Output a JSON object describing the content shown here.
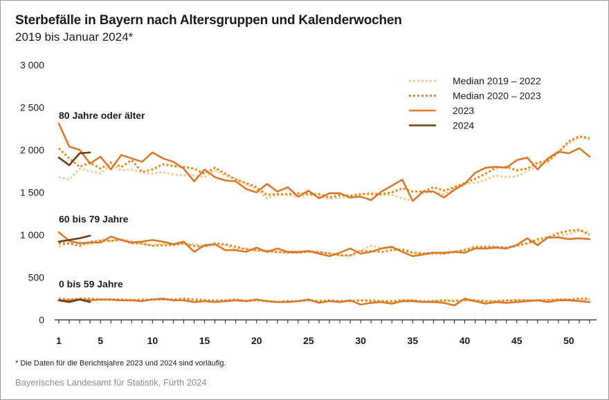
{
  "title": "Sterbefälle in Bayern nach Altersgruppen und Kalenderwochen",
  "subtitle": "2019 bis Januar 2024*",
  "footnote": "* Die Daten für die Berichtsjahre 2023 und 2024 sind vorläufig.",
  "source": "Bayerisches Landesamt für Statistik, Fürth 2024",
  "chart_data": {
    "type": "line",
    "xlim": [
      1,
      52
    ],
    "ylim": [
      0,
      3000
    ],
    "yticks": [
      0,
      500,
      1000,
      1500,
      2000,
      2500,
      3000
    ],
    "ytick_labels": [
      "0",
      "500",
      "1 000",
      "1 500",
      "2 000",
      "2 500",
      "3 000"
    ],
    "xticks": [
      1,
      5,
      10,
      15,
      20,
      25,
      30,
      35,
      40,
      45,
      50
    ],
    "xtick_labels": [
      "1",
      "5",
      "10",
      "15",
      "20",
      "25",
      "30",
      "35",
      "40",
      "45",
      "50"
    ],
    "legend_position": "top-right",
    "grid": false,
    "legend": [
      {
        "key": "median_2019_2022",
        "label": "Median 2019 – 2022",
        "color": "#f6c890",
        "style": "dotted"
      },
      {
        "key": "median_2020_2023",
        "label": "Median 2020 – 2023",
        "color": "#e08a1e",
        "style": "dotted"
      },
      {
        "key": "y2023",
        "label": "2023",
        "color": "#d9782a",
        "style": "solid"
      },
      {
        "key": "y2024",
        "label": "2024",
        "color": "#6b3d0e",
        "style": "solid"
      }
    ],
    "groups": [
      {
        "label": "80 Jahre oder älter",
        "median_2019_2022": [
          1680,
          1650,
          1780,
          1750,
          1720,
          1830,
          1760,
          1770,
          1730,
          1720,
          1740,
          1710,
          1700,
          1700,
          1680,
          1760,
          1700,
          1660,
          1600,
          1540,
          1430,
          1470,
          1470,
          1450,
          1470,
          1460,
          1420,
          1440,
          1440,
          1480,
          1500,
          1470,
          1470,
          1430,
          1400,
          1490,
          1500,
          1480,
          1550,
          1600,
          1610,
          1650,
          1700,
          1680,
          1690,
          1750,
          1820,
          1860,
          1980,
          2080,
          2150,
          2120
        ],
        "median_2020_2023": [
          2020,
          1900,
          1800,
          1850,
          1780,
          1850,
          1800,
          1880,
          1740,
          1770,
          1830,
          1810,
          1800,
          1780,
          1720,
          1790,
          1720,
          1650,
          1610,
          1560,
          1470,
          1480,
          1480,
          1490,
          1480,
          1480,
          1440,
          1470,
          1460,
          1480,
          1480,
          1480,
          1500,
          1550,
          1510,
          1510,
          1560,
          1520,
          1560,
          1610,
          1660,
          1720,
          1790,
          1800,
          1760,
          1780,
          1850,
          1870,
          1970,
          2100,
          2160,
          2140
        ],
        "y2023": [
          2310,
          2040,
          2000,
          1840,
          1920,
          1770,
          1940,
          1900,
          1860,
          1970,
          1900,
          1860,
          1780,
          1630,
          1770,
          1680,
          1640,
          1630,
          1540,
          1500,
          1600,
          1510,
          1560,
          1450,
          1520,
          1430,
          1490,
          1490,
          1440,
          1450,
          1410,
          1510,
          1580,
          1650,
          1400,
          1510,
          1510,
          1440,
          1530,
          1600,
          1730,
          1790,
          1800,
          1790,
          1880,
          1910,
          1770,
          1900,
          1980,
          1960,
          2020,
          1920
        ],
        "y2024": [
          1910,
          1820,
          1960,
          1970
        ]
      },
      {
        "label": "60 bis 79 Jahre",
        "median_2019_2022": [
          860,
          900,
          920,
          880,
          950,
          930,
          950,
          930,
          890,
          880,
          900,
          890,
          900,
          890,
          870,
          880,
          880,
          830,
          840,
          810,
          810,
          800,
          790,
          790,
          810,
          800,
          790,
          760,
          750,
          820,
          870,
          850,
          840,
          810,
          790,
          790,
          770,
          780,
          800,
          830,
          870,
          860,
          850,
          850,
          880,
          900,
          920,
          960,
          990,
          1010,
          1050,
          1030
        ],
        "median_2020_2023": [
          900,
          900,
          870,
          920,
          930,
          930,
          940,
          900,
          900,
          870,
          880,
          880,
          900,
          870,
          860,
          900,
          890,
          860,
          830,
          820,
          810,
          800,
          790,
          790,
          800,
          800,
          780,
          760,
          760,
          810,
          810,
          800,
          820,
          830,
          790,
          780,
          790,
          780,
          800,
          820,
          850,
          860,
          860,
          850,
          870,
          900,
          950,
          970,
          1020,
          1050,
          1060,
          1000
        ],
        "y2023": [
          1030,
          930,
          900,
          910,
          910,
          980,
          940,
          910,
          920,
          940,
          920,
          890,
          920,
          800,
          880,
          890,
          820,
          820,
          800,
          850,
          800,
          840,
          800,
          800,
          810,
          780,
          750,
          790,
          840,
          780,
          800,
          840,
          860,
          800,
          750,
          770,
          790,
          790,
          800,
          790,
          840,
          840,
          850,
          840,
          880,
          960,
          880,
          970,
          970,
          950,
          960,
          950
        ],
        "y2024": [
          920,
          940,
          960,
          990
        ]
      },
      {
        "label": "0 bis 59 Jahre",
        "median_2019_2022": [
          240,
          230,
          240,
          230,
          240,
          230,
          230,
          240,
          230,
          240,
          240,
          240,
          250,
          240,
          240,
          220,
          230,
          240,
          230,
          230,
          220,
          210,
          220,
          220,
          240,
          210,
          230,
          210,
          220,
          230,
          240,
          220,
          200,
          220,
          230,
          210,
          220,
          220,
          230,
          230,
          220,
          210,
          220,
          220,
          240,
          230,
          230,
          240,
          240,
          240,
          230,
          240
        ],
        "median_2020_2023": [
          250,
          240,
          250,
          250,
          240,
          240,
          240,
          230,
          240,
          240,
          240,
          240,
          250,
          240,
          230,
          230,
          230,
          240,
          220,
          230,
          220,
          210,
          220,
          220,
          230,
          220,
          230,
          220,
          220,
          230,
          220,
          220,
          220,
          230,
          230,
          220,
          220,
          230,
          220,
          230,
          230,
          220,
          220,
          230,
          230,
          230,
          230,
          230,
          240,
          240,
          250,
          250
        ],
        "y2023": [
          230,
          230,
          240,
          230,
          240,
          240,
          230,
          230,
          220,
          240,
          250,
          230,
          230,
          210,
          220,
          210,
          220,
          230,
          220,
          240,
          220,
          210,
          210,
          220,
          240,
          200,
          220,
          210,
          230,
          180,
          200,
          210,
          190,
          220,
          220,
          210,
          210,
          200,
          170,
          250,
          220,
          190,
          210,
          200,
          210,
          220,
          230,
          210,
          230,
          230,
          220,
          210
        ],
        "y2024": [
          230,
          210,
          240,
          210
        ]
      }
    ]
  }
}
